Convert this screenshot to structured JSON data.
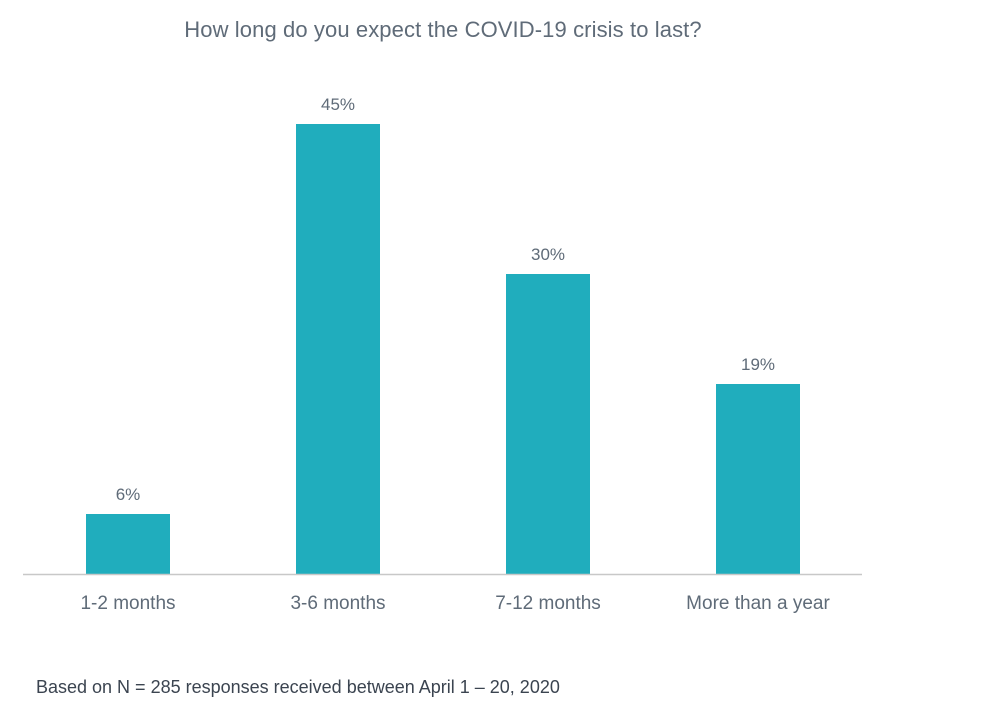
{
  "chart_data": {
    "type": "bar",
    "title": "How long do you expect the COVID-19 crisis to last?",
    "categories": [
      "1-2 months",
      "3-6 months",
      "7-12 months",
      "More than a year"
    ],
    "values": [
      6,
      45,
      30,
      19
    ],
    "value_labels": [
      "6%",
      "45%",
      "30%",
      "19%"
    ],
    "xlabel": "",
    "ylabel": "",
    "ylim": [
      0,
      45
    ],
    "grid": false,
    "bar_color": "#20adbd",
    "axis_color": "#c8c8c8"
  },
  "footnote": "Based on N = 285 responses received between April 1 – 20, 2020"
}
